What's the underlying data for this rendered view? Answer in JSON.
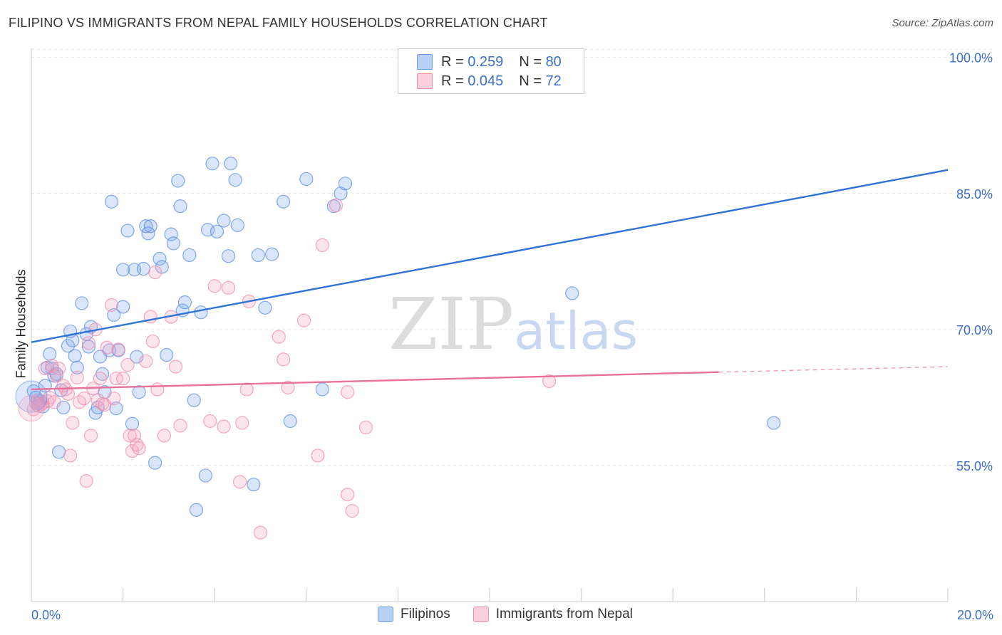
{
  "title": "FILIPINO VS IMMIGRANTS FROM NEPAL FAMILY HOUSEHOLDS CORRELATION CHART",
  "source": "Source: ZipAtlas.com",
  "watermark": "ZIPatlas",
  "legend": {
    "r_label": "R =",
    "n_label": "N =",
    "rows": [
      {
        "r": "0.259",
        "n": "80",
        "color": "#5b8ee6"
      },
      {
        "r": "0.045",
        "n": "72",
        "color": "#f08cab"
      }
    ]
  },
  "bottom_legend": [
    {
      "label": "Filipinos",
      "color": "#5b8ee6"
    },
    {
      "label": "Immigrants from Nepal",
      "color": "#f08cab"
    }
  ],
  "chart_data": {
    "type": "scatter",
    "title": "FILIPINO VS IMMIGRANTS FROM NEPAL FAMILY HOUSEHOLDS CORRELATION CHART",
    "xlabel": "",
    "ylabel": "Family Households",
    "xlim": [
      0,
      20
    ],
    "ylim": [
      40,
      101
    ],
    "x_tick_labels": [
      "0.0%",
      "20.0%"
    ],
    "y_ticks": [
      55,
      70,
      85,
      100
    ],
    "y_tick_labels": [
      "55.0%",
      "70.0%",
      "85.0%",
      "100.0%"
    ],
    "grid": true,
    "series": [
      {
        "name": "Filipinos",
        "color": "#5b8ee6",
        "trend": {
          "x": [
            0,
            20
          ],
          "y": [
            68.6,
            87.6
          ]
        },
        "points": [
          [
            0.05,
            63.2
          ],
          [
            0.1,
            62.5
          ],
          [
            0.15,
            61.9
          ],
          [
            0.2,
            62.1
          ],
          [
            0.25,
            61.5
          ],
          [
            0.3,
            63.8
          ],
          [
            0.35,
            65.8
          ],
          [
            0.4,
            67.3
          ],
          [
            0.45,
            65.7
          ],
          [
            0.5,
            64.9
          ],
          [
            0.55,
            65.1
          ],
          [
            0.6,
            56.5
          ],
          [
            0.65,
            63.3
          ],
          [
            0.7,
            61.4
          ],
          [
            0.8,
            68.2
          ],
          [
            0.85,
            69.8
          ],
          [
            0.9,
            68.8
          ],
          [
            0.95,
            67.1
          ],
          [
            1.0,
            65.8
          ],
          [
            1.1,
            72.9
          ],
          [
            1.2,
            69.5
          ],
          [
            1.25,
            68.1
          ],
          [
            1.3,
            70.3
          ],
          [
            1.4,
            60.8
          ],
          [
            1.45,
            61.4
          ],
          [
            1.5,
            67.0
          ],
          [
            1.55,
            65.1
          ],
          [
            1.6,
            63.1
          ],
          [
            1.7,
            67.7
          ],
          [
            1.75,
            84.1
          ],
          [
            1.8,
            71.6
          ],
          [
            1.85,
            61.3
          ],
          [
            1.9,
            67.7
          ],
          [
            2.0,
            72.5
          ],
          [
            2.0,
            76.6
          ],
          [
            2.1,
            80.9
          ],
          [
            2.2,
            59.6
          ],
          [
            2.25,
            76.6
          ],
          [
            2.3,
            67.0
          ],
          [
            2.35,
            63.1
          ],
          [
            2.45,
            76.7
          ],
          [
            2.5,
            81.4
          ],
          [
            2.55,
            80.6
          ],
          [
            2.6,
            81.4
          ],
          [
            2.7,
            55.3
          ],
          [
            2.8,
            77.8
          ],
          [
            2.85,
            76.9
          ],
          [
            2.95,
            67.2
          ],
          [
            3.05,
            80.5
          ],
          [
            3.1,
            79.5
          ],
          [
            3.2,
            86.4
          ],
          [
            3.25,
            83.6
          ],
          [
            3.3,
            72.1
          ],
          [
            3.35,
            73.0
          ],
          [
            3.45,
            78.2
          ],
          [
            3.55,
            62.2
          ],
          [
            3.6,
            50.1
          ],
          [
            3.7,
            71.9
          ],
          [
            3.8,
            53.9
          ],
          [
            3.85,
            81.0
          ],
          [
            3.95,
            88.3
          ],
          [
            4.05,
            80.8
          ],
          [
            4.2,
            82.0
          ],
          [
            4.3,
            78.1
          ],
          [
            4.35,
            88.3
          ],
          [
            4.45,
            86.5
          ],
          [
            4.5,
            81.5
          ],
          [
            4.85,
            52.9
          ],
          [
            4.95,
            78.2
          ],
          [
            5.1,
            72.4
          ],
          [
            5.25,
            78.3
          ],
          [
            5.5,
            84.1
          ],
          [
            5.65,
            59.9
          ],
          [
            6.0,
            86.6
          ],
          [
            6.35,
            63.4
          ],
          [
            6.6,
            83.6
          ],
          [
            6.75,
            85.0
          ],
          [
            6.85,
            86.1
          ],
          [
            11.8,
            74.0
          ],
          [
            16.2,
            59.7
          ]
        ]
      },
      {
        "name": "Immigrants from Nepal",
        "color": "#f08cab",
        "trend": {
          "x": [
            0,
            15
          ],
          "y": [
            63.4,
            65.3
          ]
        },
        "trend_dashed": {
          "x": [
            15,
            20
          ],
          "y": [
            65.3,
            65.9
          ]
        },
        "points": [
          [
            0.05,
            61.2
          ],
          [
            0.1,
            61.9
          ],
          [
            0.15,
            62.2
          ],
          [
            0.2,
            61.7
          ],
          [
            0.25,
            61.9
          ],
          [
            0.3,
            65.7
          ],
          [
            0.35,
            62.1
          ],
          [
            0.4,
            62.5
          ],
          [
            0.45,
            66.0
          ],
          [
            0.5,
            62.0
          ],
          [
            0.55,
            64.9
          ],
          [
            0.6,
            65.7
          ],
          [
            0.7,
            63.8
          ],
          [
            0.75,
            63.4
          ],
          [
            0.8,
            62.9
          ],
          [
            0.85,
            56.1
          ],
          [
            0.9,
            59.7
          ],
          [
            1.0,
            64.7
          ],
          [
            1.05,
            62.0
          ],
          [
            1.15,
            62.4
          ],
          [
            1.2,
            53.3
          ],
          [
            1.25,
            68.5
          ],
          [
            1.3,
            58.3
          ],
          [
            1.35,
            63.5
          ],
          [
            1.4,
            70.0
          ],
          [
            1.45,
            62.2
          ],
          [
            1.5,
            64.6
          ],
          [
            1.55,
            61.8
          ],
          [
            1.6,
            61.7
          ],
          [
            1.65,
            68.0
          ],
          [
            1.75,
            72.7
          ],
          [
            1.8,
            62.4
          ],
          [
            1.85,
            64.6
          ],
          [
            1.9,
            67.8
          ],
          [
            2.0,
            64.6
          ],
          [
            2.1,
            66.1
          ],
          [
            2.15,
            58.3
          ],
          [
            2.2,
            56.6
          ],
          [
            2.25,
            58.3
          ],
          [
            2.3,
            57.3
          ],
          [
            2.35,
            56.9
          ],
          [
            2.5,
            66.5
          ],
          [
            2.6,
            71.4
          ],
          [
            2.65,
            68.7
          ],
          [
            2.7,
            76.3
          ],
          [
            2.75,
            63.4
          ],
          [
            2.9,
            58.3
          ],
          [
            3.05,
            71.4
          ],
          [
            3.15,
            65.9
          ],
          [
            3.25,
            59.4
          ],
          [
            3.9,
            59.9
          ],
          [
            4.0,
            74.8
          ],
          [
            4.2,
            59.3
          ],
          [
            4.3,
            74.6
          ],
          [
            4.55,
            53.2
          ],
          [
            4.6,
            59.7
          ],
          [
            4.7,
            63.4
          ],
          [
            4.75,
            73.1
          ],
          [
            5.0,
            47.6
          ],
          [
            5.4,
            69.2
          ],
          [
            5.5,
            66.7
          ],
          [
            5.6,
            63.6
          ],
          [
            5.95,
            71.0
          ],
          [
            6.25,
            56.1
          ],
          [
            6.35,
            79.3
          ],
          [
            6.65,
            83.7
          ],
          [
            6.9,
            63.1
          ],
          [
            6.9,
            51.8
          ],
          [
            7.0,
            50.0
          ],
          [
            7.3,
            59.2
          ],
          [
            11.3,
            64.3
          ],
          [
            0.15,
            61.6
          ]
        ]
      }
    ]
  }
}
